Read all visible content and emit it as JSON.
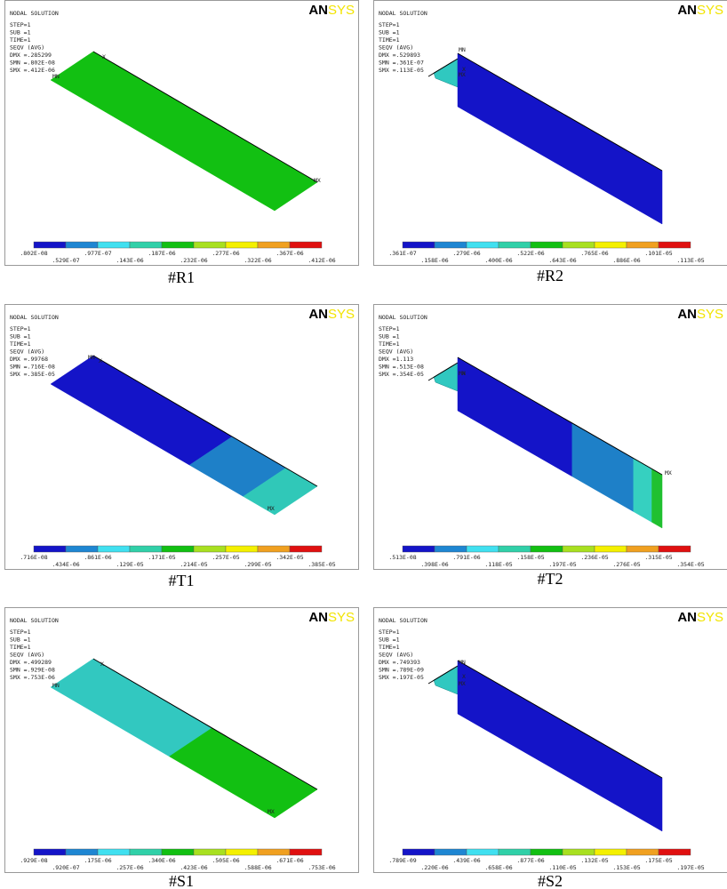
{
  "panels": [
    {
      "caption": "#R1",
      "title": "NODAL SOLUTION",
      "info": [
        "STEP=1",
        "SUB =1",
        "TIME=1",
        "SEQV     (AVG)",
        "DMX =.285299",
        "SMN =.802E-08",
        "SMX =.412E-06"
      ],
      "logo": [
        "AN",
        "SYS"
      ],
      "markers": [
        "MN",
        "MX",
        "X"
      ],
      "legend_labels": [
        ".802E-08",
        ".529E-07",
        ".977E-07",
        ".143E-06",
        ".187E-06",
        ".232E-06",
        ".277E-06",
        ".322E-06",
        ".367E-06",
        ".412E-06"
      ]
    },
    {
      "caption": "#R2",
      "title": "NODAL SOLUTION",
      "info": [
        "STEP=1",
        "SUB =1",
        "TIME=1",
        "SEQV     (AVG)",
        "DMX =.529893",
        "SMN =.361E-07",
        "SMX =.113E-05"
      ],
      "logo": [
        "AN",
        "SYS"
      ],
      "markers": [
        "MN",
        "MX",
        "X"
      ],
      "legend_labels": [
        ".361E-07",
        ".158E-06",
        ".279E-06",
        ".400E-06",
        ".522E-06",
        ".643E-06",
        ".765E-06",
        ".886E-06",
        ".101E-05",
        ".113E-05"
      ]
    },
    {
      "caption": "#T1",
      "title": "NODAL SOLUTION",
      "info": [
        "STEP=1",
        "SUB =1",
        "TIME=1",
        "SEQV     (AVG)",
        "DMX =.99768",
        "SMN =.716E-08",
        "SMX =.385E-05"
      ],
      "logo": [
        "AN",
        "SYS"
      ],
      "markers": [
        "MN",
        "MX",
        "X"
      ],
      "legend_labels": [
        ".716E-08",
        ".434E-06",
        ".861E-06",
        ".129E-05",
        ".171E-05",
        ".214E-05",
        ".257E-05",
        ".299E-05",
        ".342E-05",
        ".385E-05"
      ]
    },
    {
      "caption": "#T2",
      "title": "NODAL SOLUTION",
      "info": [
        "STEP=1",
        "SUB =1",
        "TIME=1",
        "SEQV     (AVG)",
        "DMX =1.113",
        "SMN =.513E-08",
        "SMX =.354E-05"
      ],
      "logo": [
        "AN",
        "SYS"
      ],
      "markers": [
        "MN",
        "MX",
        "X"
      ],
      "legend_labels": [
        ".513E-08",
        ".398E-06",
        ".791E-06",
        ".118E-05",
        ".158E-05",
        ".197E-05",
        ".236E-05",
        ".276E-05",
        ".315E-05",
        ".354E-05"
      ]
    },
    {
      "caption": "#S1",
      "title": "NODAL SOLUTION",
      "info": [
        "STEP=1",
        "SUB =1",
        "TIME=1",
        "SEQV     (AVG)",
        "DMX =.499289",
        "SMN =.929E-08",
        "SMX =.753E-06"
      ],
      "logo": [
        "AN",
        "SYS"
      ],
      "markers": [
        "MN",
        "MX",
        "X"
      ],
      "legend_labels": [
        ".929E-08",
        ".920E-07",
        ".175E-06",
        ".257E-06",
        ".340E-06",
        ".423E-06",
        ".505E-06",
        ".588E-06",
        ".671E-06",
        ".753E-06"
      ]
    },
    {
      "caption": "#S2",
      "title": "NODAL SOLUTION",
      "info": [
        "STEP=1",
        "SUB =1",
        "TIME=1",
        "SEQV     (AVG)",
        "DMX =.749393",
        "SMN =.789E-09",
        "SMX =.197E-05"
      ],
      "logo": [
        "AN",
        "SYS"
      ],
      "markers": [
        "MN",
        "MX",
        "X"
      ],
      "legend_labels": [
        ".789E-09",
        ".220E-06",
        ".439E-06",
        ".658E-06",
        ".877E-06",
        ".110E-05",
        ".132E-05",
        ".153E-05",
        ".175E-05",
        ".197E-05"
      ]
    }
  ]
}
